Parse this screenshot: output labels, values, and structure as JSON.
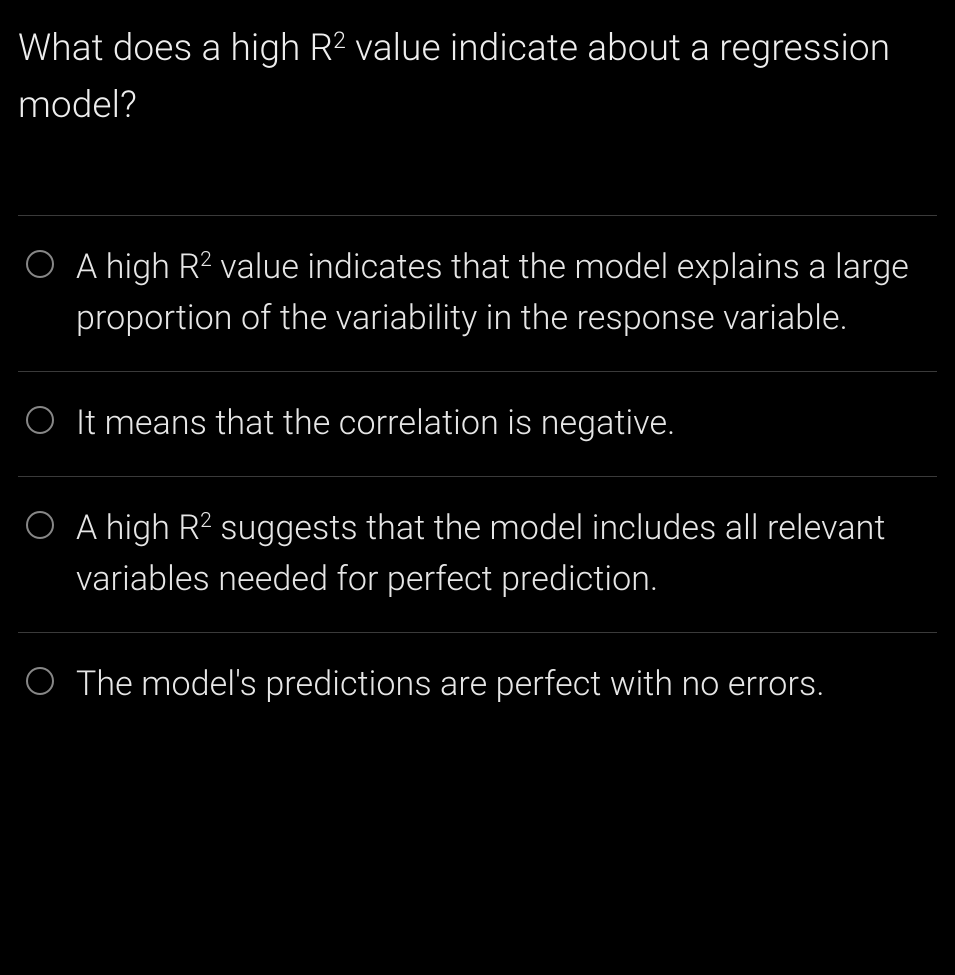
{
  "question": {
    "prefix": "What does a high R",
    "sup": "2",
    "suffix": " value indicate about a regression model?"
  },
  "options": [
    {
      "segments": [
        {
          "text": "A high R",
          "type": "plain"
        },
        {
          "text": "2",
          "type": "sup"
        },
        {
          "text": " value indicates that the model explains a large proportion of the variability in the response variable.",
          "type": "plain"
        }
      ]
    },
    {
      "segments": [
        {
          "text": "It means that the correlation is negative.",
          "type": "plain"
        }
      ]
    },
    {
      "segments": [
        {
          "text": "A high R",
          "type": "plain"
        },
        {
          "text": "2",
          "type": "sup"
        },
        {
          "text": " suggests that the model includes all relevant variables needed for perfect prediction.",
          "type": "plain"
        }
      ]
    },
    {
      "segments": [
        {
          "text": "The model's predictions are perfect with no errors.",
          "type": "plain"
        }
      ]
    }
  ],
  "styling": {
    "background_color": "#000000",
    "text_color": "#e8e8e8",
    "divider_color": "#3a3a3a",
    "radio_border_color": "#878787",
    "question_fontsize": 37,
    "option_fontsize": 34,
    "font_weight": 300
  }
}
